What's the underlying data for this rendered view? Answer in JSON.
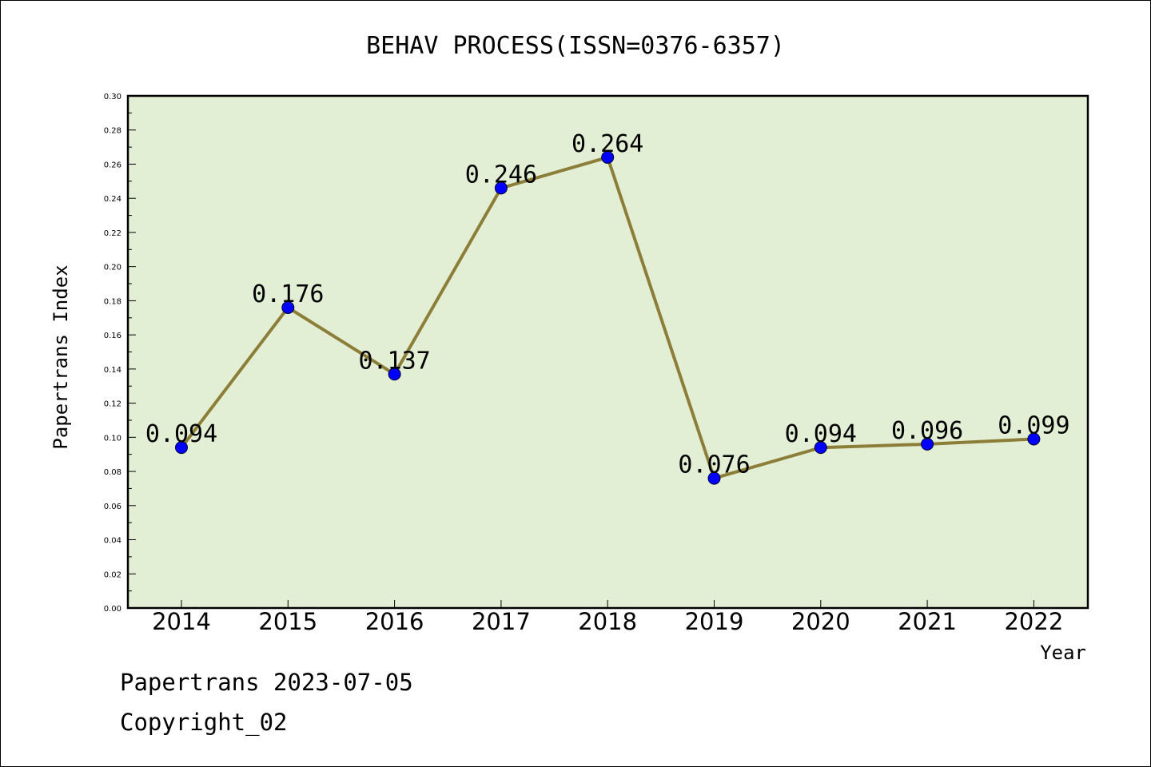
{
  "footer": {
    "line1": "Papertrans 2023-07-05",
    "line2": "Copyright_02"
  },
  "chart_data": {
    "type": "line",
    "title": "BEHAV PROCESS(ISSN=0376-6357)",
    "xlabel": "Year",
    "ylabel": "Papertrans Index",
    "categories": [
      "2014",
      "2015",
      "2016",
      "2017",
      "2018",
      "2019",
      "2020",
      "2021",
      "2022"
    ],
    "values": [
      0.094,
      0.176,
      0.137,
      0.246,
      0.264,
      0.076,
      0.094,
      0.096,
      0.099
    ],
    "data_labels": [
      "0.094",
      "0.176",
      "0.137",
      "0.246",
      "0.264",
      "0.076",
      "0.094",
      "0.096",
      "0.099"
    ],
    "ylim": [
      0,
      0.3
    ],
    "yticks": [
      "0.00",
      "0.02",
      "0.04",
      "0.06",
      "0.08",
      "0.10",
      "0.12",
      "0.14",
      "0.16",
      "0.18",
      "0.20",
      "0.22",
      "0.24",
      "0.26",
      "0.28",
      "0.30"
    ],
    "grid": false,
    "legend": "none",
    "colors": {
      "plot_background": "#e2efd4",
      "line": "#8c7e38",
      "marker": "#0000ff"
    }
  }
}
